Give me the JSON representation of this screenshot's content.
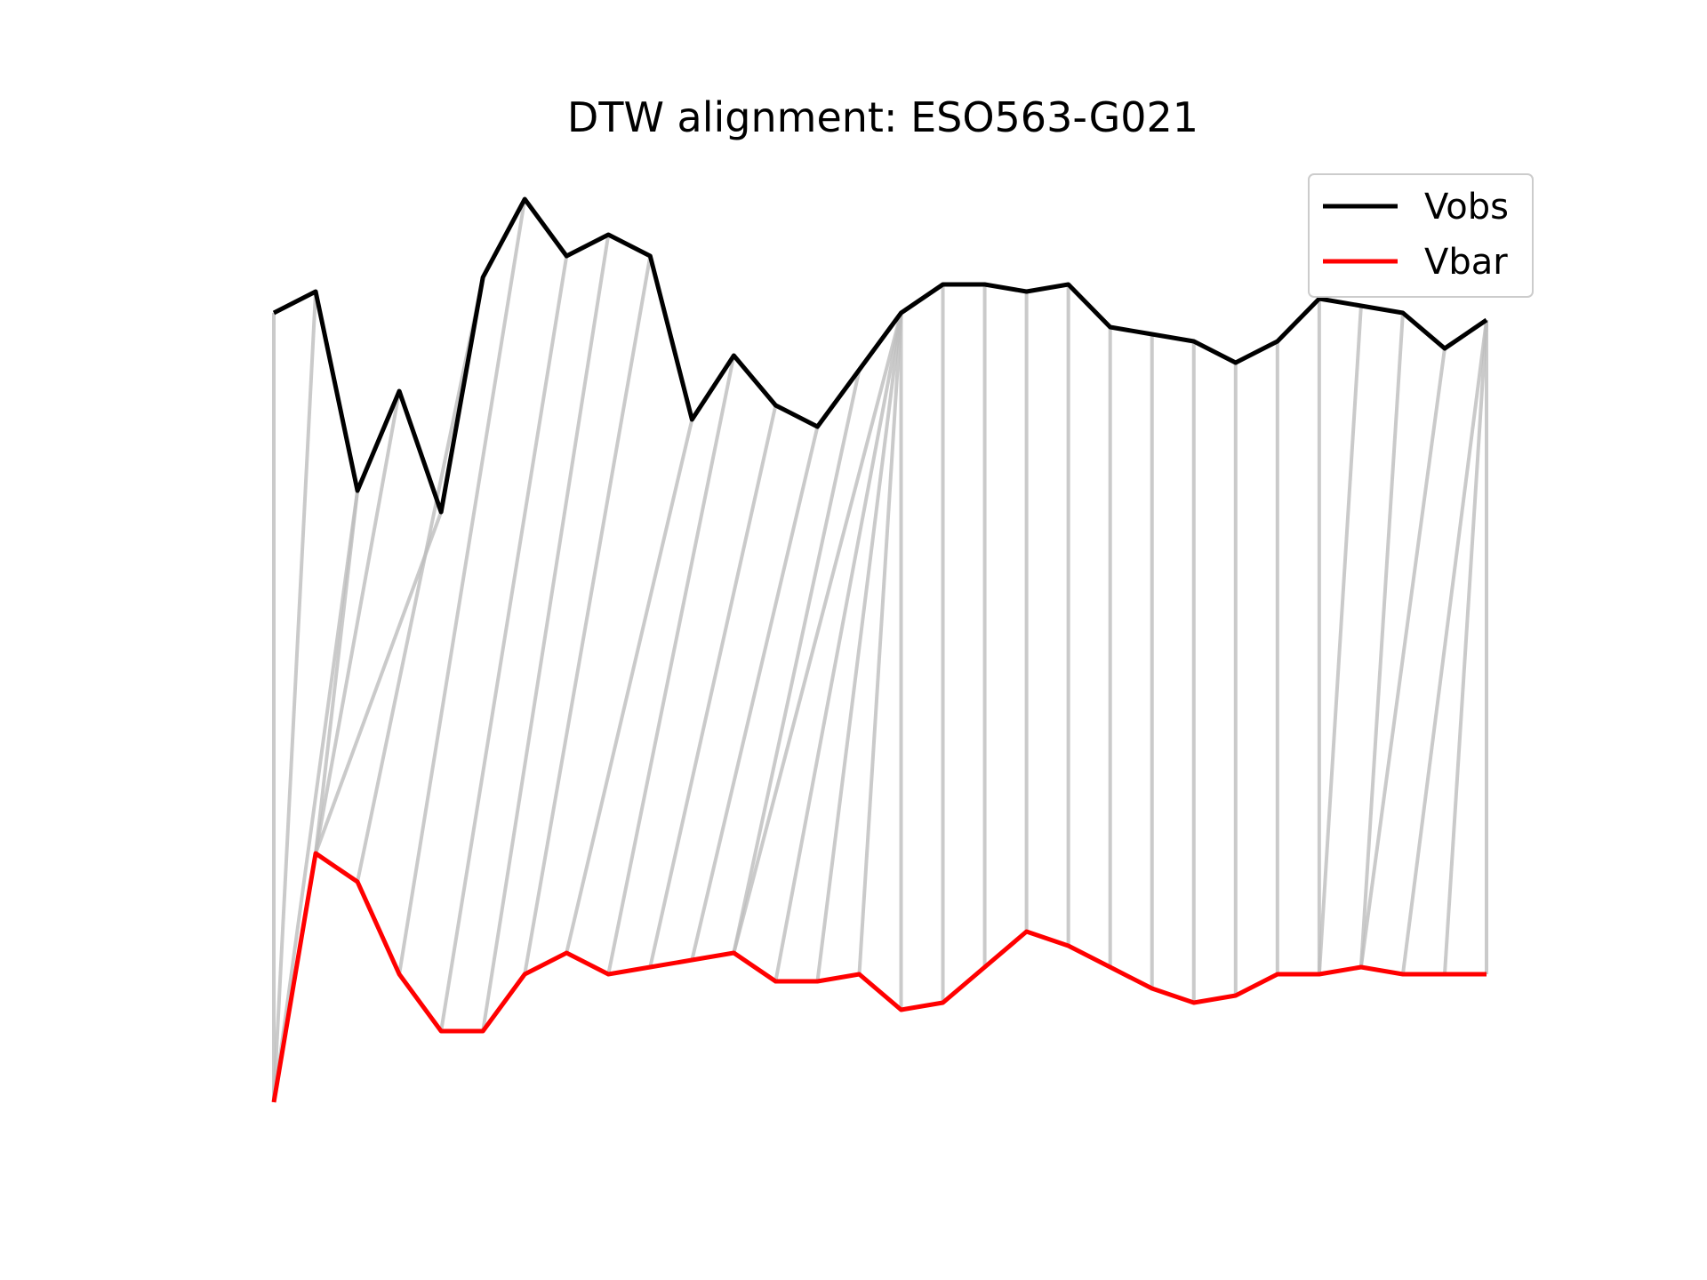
{
  "chart_data": {
    "type": "line",
    "title": "DTW alignment: ESO563-G021",
    "xlabel": "",
    "ylabel": "",
    "axes_visible": false,
    "grid": false,
    "legend_position": "top-right",
    "series": [
      {
        "name": "Vobs",
        "color": "#000000",
        "values": [
          0.97,
          1.0,
          0.72,
          0.86,
          0.69,
          1.02,
          1.13,
          1.05,
          1.08,
          1.05,
          0.82,
          0.91,
          0.84,
          0.81,
          0.89,
          0.97,
          1.01,
          1.01,
          1.0,
          1.01,
          0.95,
          0.94,
          0.93,
          0.9,
          0.93,
          0.99,
          0.98,
          0.97,
          0.92,
          0.96
        ]
      },
      {
        "name": "Vbar",
        "color": "#ff0000",
        "values": [
          -0.14,
          0.21,
          0.17,
          0.04,
          -0.04,
          -0.04,
          0.04,
          0.07,
          0.04,
          0.05,
          0.06,
          0.07,
          0.03,
          0.03,
          0.04,
          -0.01,
          0.0,
          0.05,
          0.1,
          0.08,
          0.05,
          0.02,
          0.0,
          0.01,
          0.04,
          0.04,
          0.05,
          0.04,
          0.04,
          0.04
        ]
      }
    ],
    "alignment_color": "#bdbdbd",
    "alignment": [
      [
        0,
        0
      ],
      [
        1,
        0
      ],
      [
        2,
        0
      ],
      [
        2,
        1
      ],
      [
        3,
        1
      ],
      [
        4,
        1
      ],
      [
        5,
        2
      ],
      [
        6,
        3
      ],
      [
        7,
        4
      ],
      [
        8,
        5
      ],
      [
        9,
        6
      ],
      [
        10,
        7
      ],
      [
        11,
        8
      ],
      [
        12,
        9
      ],
      [
        13,
        10
      ],
      [
        14,
        11
      ],
      [
        15,
        11
      ],
      [
        15,
        12
      ],
      [
        15,
        13
      ],
      [
        15,
        14
      ],
      [
        15,
        15
      ],
      [
        16,
        16
      ],
      [
        17,
        17
      ],
      [
        18,
        18
      ],
      [
        19,
        19
      ],
      [
        20,
        20
      ],
      [
        21,
        21
      ],
      [
        22,
        22
      ],
      [
        23,
        23
      ],
      [
        24,
        24
      ],
      [
        25,
        25
      ],
      [
        26,
        25
      ],
      [
        27,
        26
      ],
      [
        28,
        26
      ],
      [
        29,
        27
      ],
      [
        29,
        28
      ],
      [
        29,
        29
      ]
    ]
  }
}
